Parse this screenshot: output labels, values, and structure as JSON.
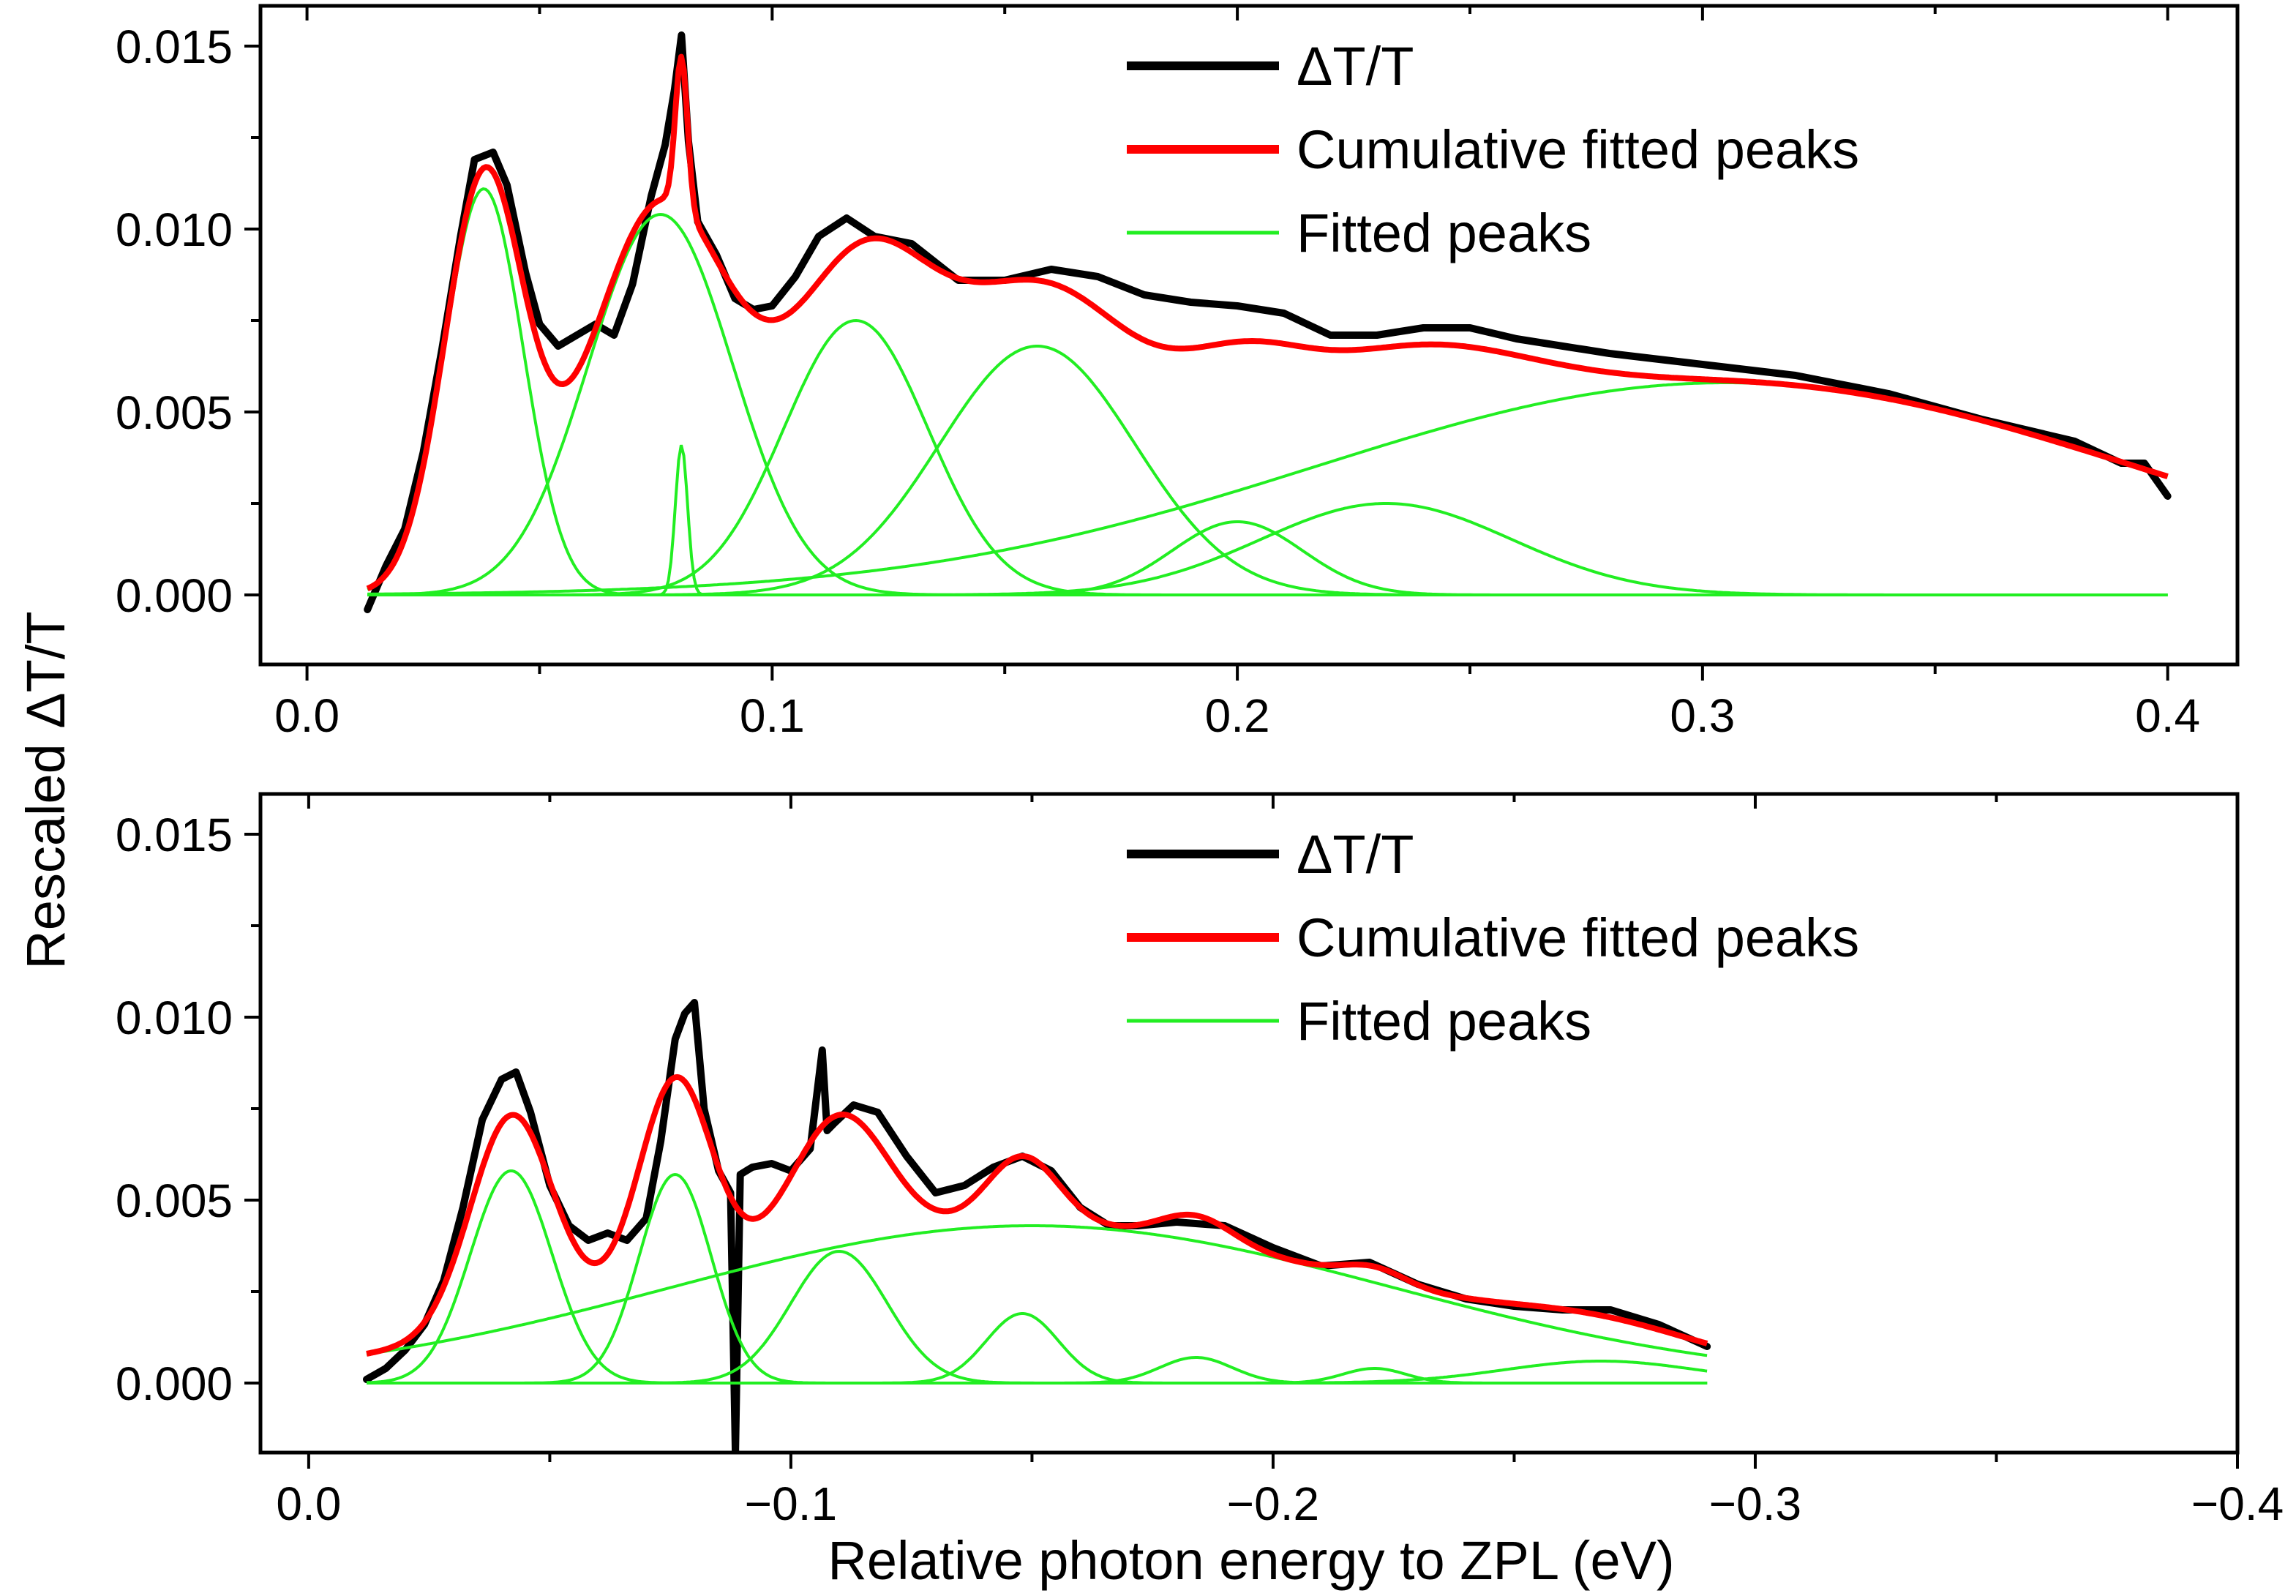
{
  "figure": {
    "ylabel": "Rescaled ΔT/T",
    "xlabel": "Relative photon energy to ZPL (eV)"
  },
  "colors": {
    "data": "#000000",
    "cumulative": "#ff0000",
    "peaks": "#22ee22"
  },
  "chart_data": [
    {
      "type": "line",
      "panel": "top",
      "xlim": [
        -0.01,
        0.415
      ],
      "ylim": [
        -0.0019,
        0.0161
      ],
      "xticks": [
        0.0,
        0.1,
        0.2,
        0.3,
        0.4
      ],
      "xtick_labels": [
        "0.0",
        "0.1",
        "0.2",
        "0.3",
        "0.4"
      ],
      "yticks": [
        0.0,
        0.005,
        0.01,
        0.015
      ],
      "ytick_labels": [
        "0.000",
        "0.005",
        "0.010",
        "0.015"
      ],
      "grid": false,
      "legend_placement": "top-right",
      "legend": [
        "ΔT/T",
        "Cumulative fitted peaks",
        "Fitted peaks"
      ],
      "x_range": [
        0.013,
        0.4
      ],
      "peaks": [
        {
          "center": 0.038,
          "amplitude": 0.0111,
          "width": 0.0085
        },
        {
          "center": 0.076,
          "amplitude": 0.0104,
          "width": 0.0155
        },
        {
          "center": 0.0805,
          "amplitude": 0.0041,
          "width": 0.0013
        },
        {
          "center": 0.118,
          "amplitude": 0.0075,
          "width": 0.0155
        },
        {
          "center": 0.157,
          "amplitude": 0.0068,
          "width": 0.021
        },
        {
          "center": 0.2,
          "amplitude": 0.002,
          "width": 0.014
        },
        {
          "center": 0.232,
          "amplitude": 0.0025,
          "width": 0.027
        },
        {
          "center": 0.305,
          "amplitude": 0.0058,
          "width": 0.088
        }
      ],
      "measured": {
        "x": [
          0.013,
          0.017,
          0.021,
          0.025,
          0.029,
          0.033,
          0.036,
          0.04,
          0.043,
          0.047,
          0.05,
          0.054,
          0.058,
          0.062,
          0.066,
          0.07,
          0.074,
          0.077,
          0.079,
          0.0805,
          0.082,
          0.084,
          0.088,
          0.092,
          0.096,
          0.1,
          0.105,
          0.11,
          0.116,
          0.122,
          0.13,
          0.14,
          0.15,
          0.16,
          0.17,
          0.18,
          0.19,
          0.2,
          0.21,
          0.22,
          0.23,
          0.24,
          0.25,
          0.26,
          0.28,
          0.3,
          0.32,
          0.34,
          0.36,
          0.38,
          0.39,
          0.395,
          0.4
        ],
        "y": [
          -0.0004,
          0.0008,
          0.0018,
          0.0039,
          0.0067,
          0.0098,
          0.0119,
          0.0121,
          0.0112,
          0.0088,
          0.0074,
          0.0068,
          0.0071,
          0.0074,
          0.0071,
          0.0085,
          0.0109,
          0.0123,
          0.0138,
          0.0153,
          0.0124,
          0.0102,
          0.0093,
          0.0081,
          0.0078,
          0.0079,
          0.0087,
          0.0098,
          0.0103,
          0.0098,
          0.0096,
          0.0086,
          0.0086,
          0.0089,
          0.0087,
          0.0082,
          0.008,
          0.0079,
          0.0077,
          0.0071,
          0.0071,
          0.0073,
          0.0073,
          0.007,
          0.0066,
          0.0063,
          0.006,
          0.0055,
          0.0048,
          0.0042,
          0.0036,
          0.0036,
          0.0027
        ]
      }
    },
    {
      "type": "line",
      "panel": "bottom",
      "xlim": [
        0.01,
        -0.4
      ],
      "ylim": [
        -0.0019,
        0.0161
      ],
      "xticks": [
        0.0,
        -0.1,
        -0.2,
        -0.3,
        -0.4
      ],
      "xtick_labels": [
        "0.0",
        "−0.1",
        "−0.2",
        "−0.3",
        "−0.4"
      ],
      "yticks": [
        0.0,
        0.005,
        0.01,
        0.015
      ],
      "ytick_labels": [
        "0.000",
        "0.005",
        "0.010",
        "0.015"
      ],
      "grid": false,
      "legend_placement": "top-right",
      "legend": [
        "ΔT/T",
        "Cumulative fitted peaks",
        "Fitted peaks"
      ],
      "x_range": [
        -0.012,
        -0.29
      ],
      "peaks": [
        {
          "center": -0.042,
          "amplitude": 0.0058,
          "width": 0.0085
        },
        {
          "center": -0.076,
          "amplitude": 0.0057,
          "width": 0.0075
        },
        {
          "center": -0.11,
          "amplitude": 0.0036,
          "width": 0.01
        },
        {
          "center": -0.148,
          "amplitude": 0.0019,
          "width": 0.0075
        },
        {
          "center": -0.184,
          "amplitude": 0.0007,
          "width": 0.0075
        },
        {
          "center": -0.221,
          "amplitude": 0.0004,
          "width": 0.0065
        },
        {
          "center": -0.268,
          "amplitude": 0.0006,
          "width": 0.02
        },
        {
          "center": -0.15,
          "amplitude": 0.0043,
          "width": 0.075
        }
      ],
      "measured": {
        "x": [
          -0.012,
          -0.016,
          -0.02,
          -0.024,
          -0.028,
          -0.032,
          -0.036,
          -0.04,
          -0.043,
          -0.046,
          -0.05,
          -0.054,
          -0.058,
          -0.062,
          -0.066,
          -0.07,
          -0.073,
          -0.076,
          -0.078,
          -0.08,
          -0.082,
          -0.085,
          -0.0875,
          -0.0885,
          -0.0895,
          -0.092,
          -0.096,
          -0.1,
          -0.104,
          -0.1065,
          -0.1075,
          -0.109,
          -0.113,
          -0.118,
          -0.124,
          -0.13,
          -0.136,
          -0.142,
          -0.148,
          -0.154,
          -0.16,
          -0.166,
          -0.172,
          -0.18,
          -0.19,
          -0.2,
          -0.21,
          -0.22,
          -0.23,
          -0.24,
          -0.25,
          -0.26,
          -0.27,
          -0.28,
          -0.29
        ],
        "y": [
          0.0001,
          0.0004,
          0.0009,
          0.0016,
          0.0028,
          0.0048,
          0.0072,
          0.0083,
          0.0085,
          0.0074,
          0.0054,
          0.0043,
          0.0039,
          0.0041,
          0.0039,
          0.0045,
          0.0066,
          0.0094,
          0.0101,
          0.0104,
          0.0075,
          0.0058,
          0.0052,
          -0.0019,
          0.0057,
          0.0059,
          0.006,
          0.0058,
          0.0064,
          0.0091,
          0.0069,
          0.0071,
          0.0076,
          0.0074,
          0.0062,
          0.0052,
          0.0054,
          0.0059,
          0.0062,
          0.0058,
          0.0048,
          0.0043,
          0.0043,
          0.0044,
          0.0043,
          0.0037,
          0.0032,
          0.0033,
          0.0027,
          0.0023,
          0.0021,
          0.002,
          0.002,
          0.0016,
          0.001
        ]
      }
    }
  ]
}
